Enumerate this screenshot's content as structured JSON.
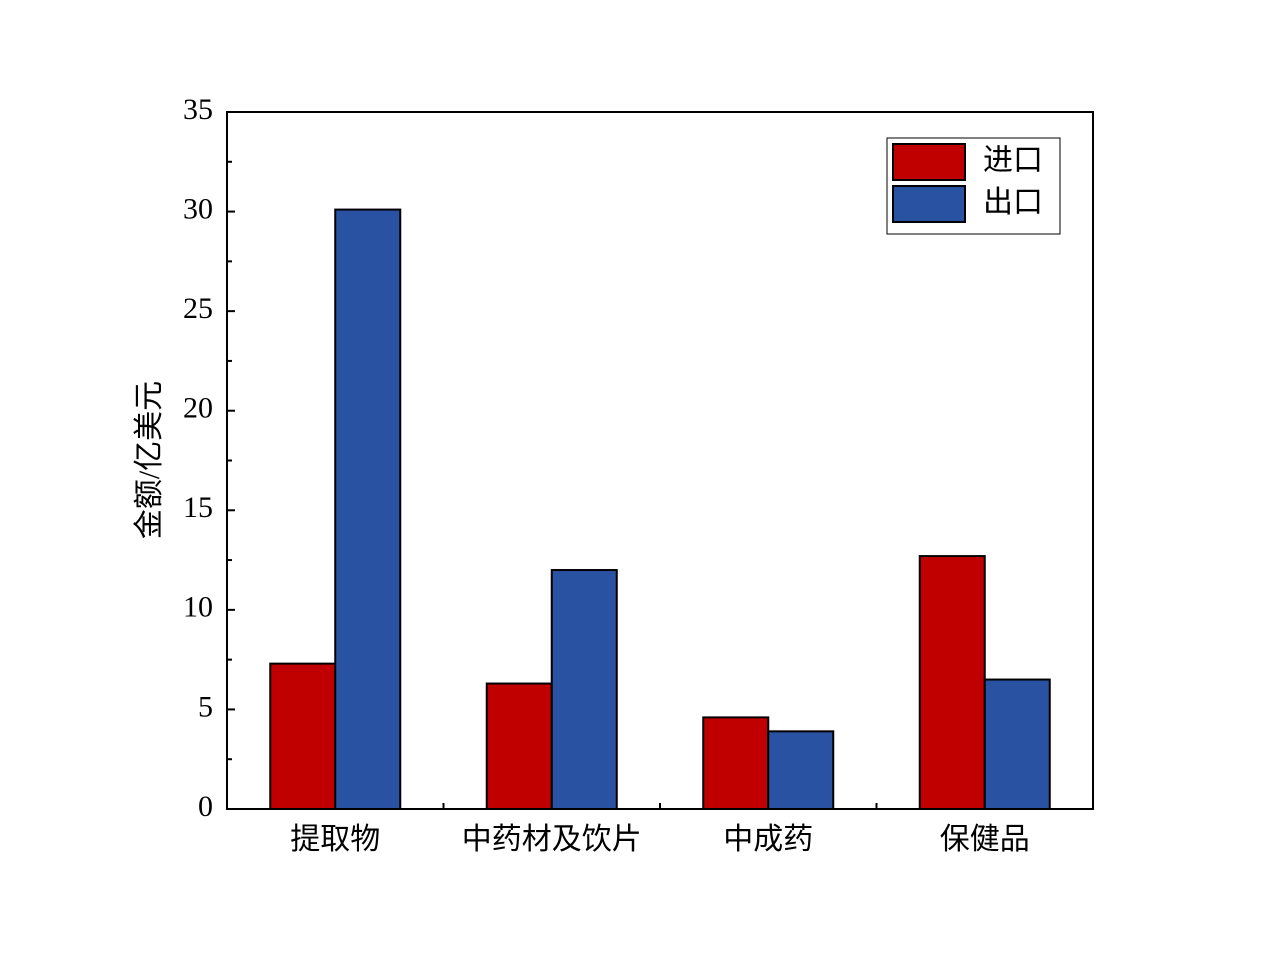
{
  "chart_data": {
    "type": "bar",
    "y_label": "金额/亿美元",
    "categories": [
      "提取物",
      "中药材及饮片",
      "中成药",
      "保健品"
    ],
    "series": [
      {
        "name": "进口",
        "color": "#c00000",
        "values": [
          7.3,
          6.3,
          4.6,
          12.7
        ]
      },
      {
        "name": "出口",
        "color": "#2a52a3",
        "values": [
          30.1,
          12.0,
          3.9,
          6.5
        ]
      }
    ],
    "ylim": [
      0,
      35
    ],
    "yticks": [
      0,
      5,
      10,
      15,
      20,
      25,
      30,
      35
    ],
    "legend": "upper right"
  }
}
